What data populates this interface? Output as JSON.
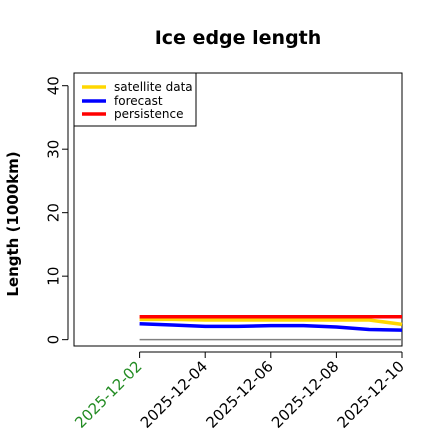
{
  "chart_data": {
    "type": "line",
    "title": "Ice edge length",
    "xlabel": "",
    "ylabel": "Length (1000km)",
    "x": [
      "2025-12-02",
      "2025-12-03",
      "2025-12-04",
      "2025-12-05",
      "2025-12-06",
      "2025-12-07",
      "2025-12-08",
      "2025-12-09",
      "2025-12-10"
    ],
    "xticks": [
      "2025-12-02",
      "2025-12-04",
      "2025-12-06",
      "2025-12-08",
      "2025-12-10"
    ],
    "xtick_colors": [
      "#228b22",
      "#000000",
      "#000000",
      "#000000",
      "#000000"
    ],
    "xlim": [
      "2025-11-30",
      "2025-12-10"
    ],
    "ylim": [
      -1,
      42
    ],
    "yticks": [
      0,
      10,
      20,
      30,
      40
    ],
    "grid": false,
    "legend_position": "top-left",
    "series": [
      {
        "name": "satellite data",
        "color": "#ffd700",
        "values": [
          3.2,
          3.2,
          3.1,
          3.1,
          3.1,
          3.1,
          3.1,
          3.1,
          2.4
        ]
      },
      {
        "name": "forecast",
        "color": "#0000ff",
        "values": [
          2.5,
          2.3,
          2.1,
          2.1,
          2.2,
          2.2,
          2.0,
          1.6,
          1.5
        ]
      },
      {
        "name": "persistence",
        "color": "#ff0000",
        "values": [
          3.6,
          3.6,
          3.6,
          3.6,
          3.6,
          3.6,
          3.6,
          3.6,
          3.6
        ]
      }
    ],
    "reference_lines": [
      {
        "color": "#808080",
        "y": 0
      }
    ]
  }
}
